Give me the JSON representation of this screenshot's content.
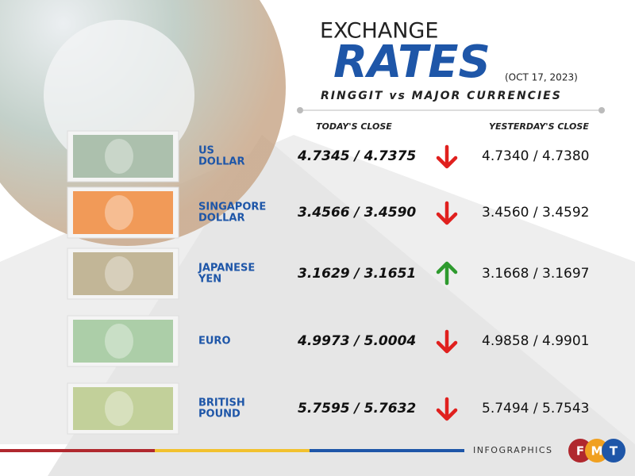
{
  "header": {
    "pre_title": "EXCHANGE",
    "title": "RATES",
    "date": "(OCT 17, 2023)",
    "subtitle": "RINGGIT vs MAJOR CURRENCIES"
  },
  "columns": [
    "TODAY'S CLOSE",
    "YESTERDAY'S CLOSE"
  ],
  "rows": [
    {
      "name": [
        "US",
        "DOLLAR"
      ],
      "today": "4.7345 / 4.7375",
      "yesterday": "4.7340 / 4.7380",
      "trend": "down",
      "note_color": "#9fb6a0"
    },
    {
      "name": [
        "SINGAPORE",
        "DOLLAR"
      ],
      "today": "3.4566 / 3.4590",
      "yesterday": "3.4560 / 3.4592",
      "trend": "down",
      "note_color": "#f08a3c"
    },
    {
      "name": [
        "JAPANESE",
        "YEN"
      ],
      "today": "3.1629 / 3.1651",
      "yesterday": "3.1668 / 3.1697",
      "trend": "up",
      "note_color": "#b9aa86"
    },
    {
      "name": [
        "EURO"
      ],
      "today": "4.9973 / 5.0004",
      "yesterday": "4.9858 / 4.9901",
      "trend": "down",
      "note_color": "#9fc79a"
    },
    {
      "name": [
        "BRITISH",
        "POUND"
      ],
      "today": "5.7595 / 5.7632",
      "yesterday": "5.7494 / 5.7543",
      "trend": "down",
      "note_color": "#b8c98a"
    }
  ],
  "footer": {
    "label": "INFOGRAPHICS",
    "logo": [
      "F",
      "M",
      "T"
    ]
  }
}
